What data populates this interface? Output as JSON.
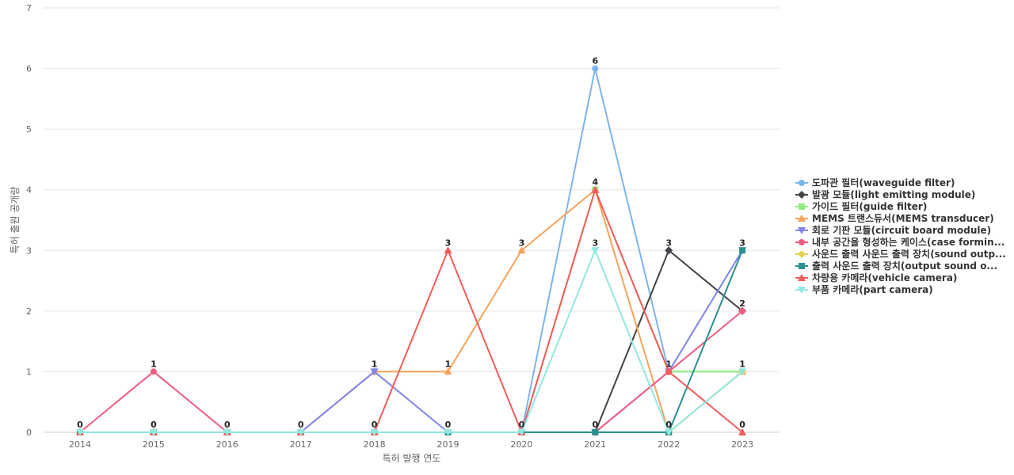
{
  "chart_data": {
    "type": "line",
    "x": [
      "2014",
      "2015",
      "2016",
      "2017",
      "2018",
      "2019",
      "2020",
      "2021",
      "2022",
      "2023"
    ],
    "xlabel": "특허 발행 연도",
    "ylabel": "특허 출원 공개량",
    "ylim": [
      0,
      7
    ],
    "yticks": [
      0,
      1,
      2,
      3,
      4,
      5,
      6,
      7
    ],
    "grid": true,
    "legend_position": "right",
    "series": [
      {
        "name": "도파관 필터(waveguide filter)",
        "color": "#7cb5ec",
        "marker": "circle",
        "values": [
          0,
          0,
          0,
          0,
          0,
          0,
          0,
          6,
          1,
          1
        ]
      },
      {
        "name": "발광 모듈(light emitting module)",
        "color": "#434348",
        "marker": "diamond",
        "values": [
          0,
          0,
          0,
          0,
          0,
          0,
          0,
          0,
          3,
          2
        ]
      },
      {
        "name": "가이드 필터(guide filter)",
        "color": "#90ed7d",
        "marker": "square",
        "values": [
          0,
          0,
          0,
          0,
          0,
          0,
          0,
          4,
          1,
          1
        ]
      },
      {
        "name": "MEMS 트랜스듀서(MEMS transducer)",
        "color": "#f7a35c",
        "marker": "triangle",
        "values": [
          0,
          0,
          0,
          0,
          1,
          1,
          3,
          4,
          0,
          1
        ]
      },
      {
        "name": "회로 기판 모듈(circuit board module)",
        "color": "#8085e9",
        "marker": "triangle-down",
        "values": [
          0,
          0,
          0,
          0,
          1,
          0,
          0,
          0,
          1,
          3
        ]
      },
      {
        "name": "내부 공간을 형성하는 케이스(case formin...",
        "color": "#f15c80",
        "marker": "circle",
        "values": [
          0,
          1,
          0,
          0,
          0,
          0,
          0,
          0,
          1,
          2
        ]
      },
      {
        "name": "사운드 출력 사운드 출력 장치(sound outp...",
        "color": "#e4d354",
        "marker": "diamond",
        "values": [
          0,
          0,
          0,
          0,
          0,
          0,
          0,
          0,
          0,
          1
        ]
      },
      {
        "name": "출력 사운드 출력 장치(output sound o...",
        "color": "#2b908f",
        "marker": "square",
        "values": [
          0,
          0,
          0,
          0,
          0,
          0,
          0,
          0,
          0,
          3
        ]
      },
      {
        "name": "차량용 카메라(vehicle camera)",
        "color": "#f45b5b",
        "marker": "triangle",
        "values": [
          0,
          0,
          0,
          0,
          0,
          3,
          0,
          4,
          1,
          0
        ]
      },
      {
        "name": "부품 카메라(part camera)",
        "color": "#91e8e1",
        "marker": "triangle-down",
        "values": [
          0,
          0,
          0,
          0,
          0,
          0,
          0,
          3,
          0,
          1
        ]
      }
    ],
    "data_labels": [
      {
        "x": "2014",
        "value": 0
      },
      {
        "x": "2015",
        "value": 1
      },
      {
        "x": "2015",
        "value": 0
      },
      {
        "x": "2016",
        "value": 0
      },
      {
        "x": "2017",
        "value": 0
      },
      {
        "x": "2018",
        "value": 1
      },
      {
        "x": "2018",
        "value": 0
      },
      {
        "x": "2019",
        "value": 3
      },
      {
        "x": "2019",
        "value": 1
      },
      {
        "x": "2019",
        "value": 0
      },
      {
        "x": "2020",
        "value": 3
      },
      {
        "x": "2020",
        "value": 0
      },
      {
        "x": "2021",
        "value": 6
      },
      {
        "x": "2021",
        "value": 4
      },
      {
        "x": "2021",
        "value": 3
      },
      {
        "x": "2021",
        "value": 0
      },
      {
        "x": "2022",
        "value": 3
      },
      {
        "x": "2022",
        "value": 1
      },
      {
        "x": "2022",
        "value": 0
      },
      {
        "x": "2023",
        "value": 3
      },
      {
        "x": "2023",
        "value": 2
      },
      {
        "x": "2023",
        "value": 1
      },
      {
        "x": "2023",
        "value": 0
      }
    ]
  }
}
